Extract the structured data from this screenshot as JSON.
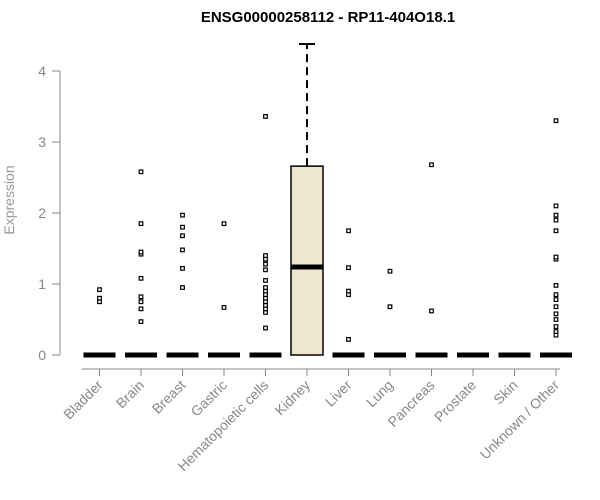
{
  "chart_data": {
    "type": "boxplot",
    "title": "ENSG00000258112 - RP11-404O18.1",
    "xlabel": "",
    "ylabel": "Expression",
    "ylim": [
      0,
      4.4
    ],
    "yticks": [
      0,
      1,
      2,
      3,
      4
    ],
    "grid": false,
    "legend": "none",
    "colors": {
      "box_fill": "#ede7d0",
      "outline": "#000000",
      "axis": "#888888"
    },
    "categories": [
      "Bladder",
      "Brain",
      "Breast",
      "Gastric",
      "Hematopoietic cells",
      "Kidney",
      "Liver",
      "Lung",
      "Pancreas",
      "Prostate",
      "Skin",
      "Unknown / Other"
    ],
    "boxes": [
      {
        "category": "Bladder",
        "min": 0,
        "q1": 0,
        "median": 0,
        "q3": 0,
        "max": 0,
        "outliers": [
          0.75,
          0.8,
          0.92
        ]
      },
      {
        "category": "Brain",
        "min": 0,
        "q1": 0,
        "median": 0,
        "q3": 0,
        "max": 0,
        "outliers": [
          0.47,
          0.65,
          0.75,
          0.82,
          1.08,
          1.42,
          1.45,
          1.85,
          2.58
        ]
      },
      {
        "category": "Breast",
        "min": 0,
        "q1": 0,
        "median": 0,
        "q3": 0,
        "max": 0,
        "outliers": [
          0.95,
          1.22,
          1.48,
          1.68,
          1.8,
          1.97
        ]
      },
      {
        "category": "Gastric",
        "min": 0,
        "q1": 0,
        "median": 0,
        "q3": 0,
        "max": 0,
        "outliers": [
          0.67,
          1.85
        ]
      },
      {
        "category": "Hematopoietic cells",
        "min": 0,
        "q1": 0,
        "median": 0,
        "q3": 0,
        "max": 0,
        "outliers": [
          0.38,
          0.6,
          0.65,
          0.7,
          0.75,
          0.8,
          0.85,
          0.9,
          0.95,
          1.05,
          1.2,
          1.28,
          1.35,
          1.4,
          3.36
        ]
      },
      {
        "category": "Kidney",
        "min": 0,
        "q1": 0,
        "median": 1.24,
        "q3": 2.66,
        "max": 4.38,
        "outliers": []
      },
      {
        "category": "Liver",
        "min": 0,
        "q1": 0,
        "median": 0,
        "q3": 0,
        "max": 0,
        "outliers": [
          0.22,
          0.85,
          0.9,
          1.23,
          1.75
        ]
      },
      {
        "category": "Lung",
        "min": 0,
        "q1": 0,
        "median": 0,
        "q3": 0,
        "max": 0,
        "outliers": [
          0.68,
          1.18
        ]
      },
      {
        "category": "Pancreas",
        "min": 0,
        "q1": 0,
        "median": 0,
        "q3": 0,
        "max": 0,
        "outliers": [
          0.62,
          2.68
        ]
      },
      {
        "category": "Prostate",
        "min": 0,
        "q1": 0,
        "median": 0,
        "q3": 0,
        "max": 0,
        "outliers": []
      },
      {
        "category": "Skin",
        "min": 0,
        "q1": 0,
        "median": 0,
        "q3": 0,
        "max": 0,
        "outliers": []
      },
      {
        "category": "Unknown / Other",
        "min": 0,
        "q1": 0,
        "median": 0,
        "q3": 0,
        "max": 0,
        "outliers": [
          0.28,
          0.33,
          0.4,
          0.5,
          0.58,
          0.68,
          0.78,
          0.85,
          0.98,
          1.35,
          1.38,
          1.75,
          1.9,
          1.97,
          2.1,
          3.3
        ]
      }
    ]
  }
}
